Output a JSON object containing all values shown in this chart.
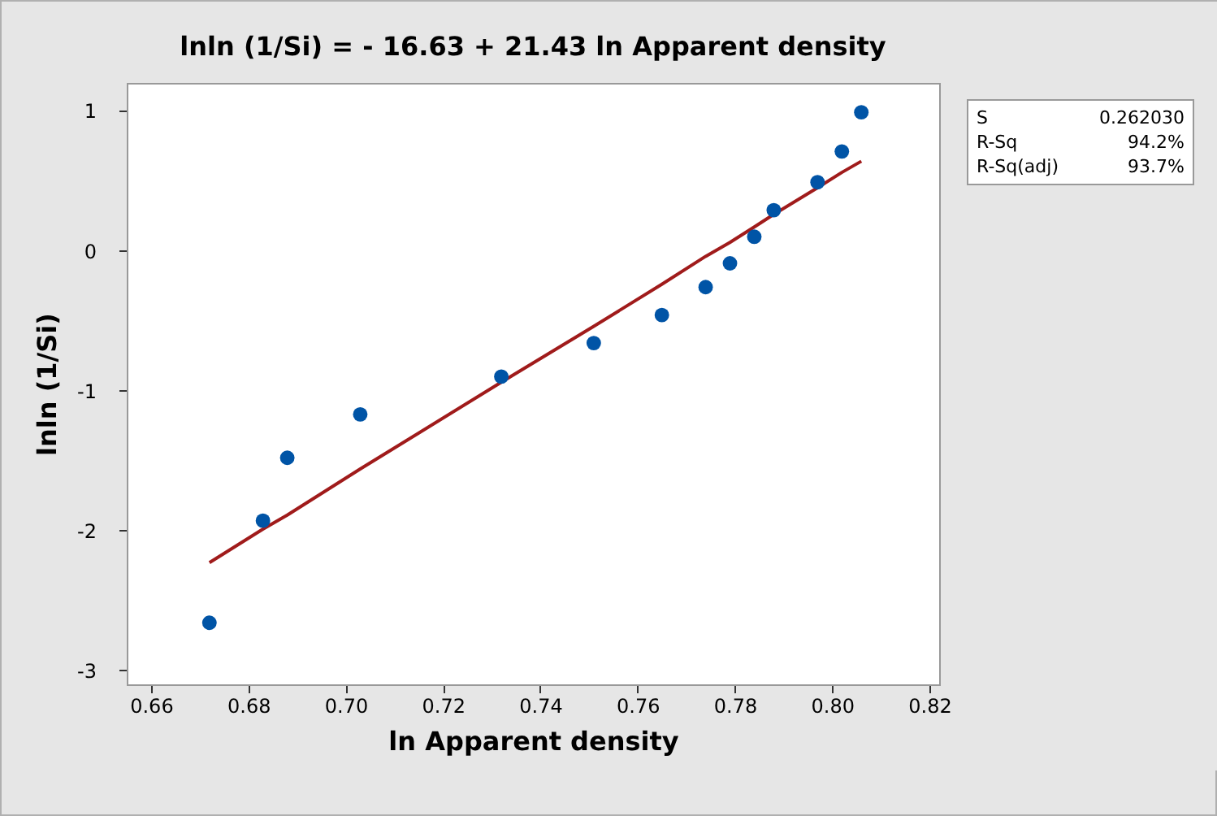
{
  "chart_data": {
    "type": "scatter",
    "title": "lnln (1/Si) = - 16.63 + 21.43 ln Apparent density",
    "xlabel": "ln Apparent density",
    "ylabel": "lnln (1/Si)",
    "xlim": [
      0.655,
      0.822
    ],
    "ylim": [
      -3.1,
      1.2
    ],
    "xticks": [
      0.66,
      0.68,
      {
        "value": 0.7,
        "label": "0.70"
      },
      0.72,
      0.74,
      0.76,
      0.78,
      {
        "value": 0.8,
        "label": "0.80"
      },
      0.82
    ],
    "yticks": [
      -3,
      -2,
      -1,
      0,
      1
    ],
    "grid": false,
    "annotations": [
      "S",
      "0.262030",
      "R-Sq",
      "94.2%",
      "R-Sq(adj)",
      "93.7%"
    ],
    "series": [
      {
        "marker": "circle",
        "color": "#0054a6",
        "x": [
          0.672,
          0.683,
          0.688,
          0.703,
          0.732,
          0.751,
          0.765,
          0.774,
          0.779,
          0.784,
          0.788,
          0.797,
          0.802,
          0.806
        ],
        "values": [
          -2.66,
          -1.93,
          -1.48,
          -1.17,
          -0.9,
          -0.66,
          -0.46,
          -0.26,
          -0.09,
          0.1,
          0.29,
          0.49,
          0.71,
          0.99
        ]
      },
      {
        "type": "line",
        "marker": "none",
        "color": "#a01b1b",
        "x": [
          0.672,
          0.683,
          0.688,
          0.703,
          0.732,
          0.751,
          0.765,
          0.774,
          0.779,
          0.784,
          0.788,
          0.797,
          0.802,
          0.806
        ],
        "values": [
          -2.23,
          -1.99,
          -1.89,
          -1.56,
          -0.94,
          -0.54,
          -0.24,
          -0.04,
          0.06,
          0.17,
          0.26,
          0.45,
          0.56,
          0.64
        ]
      }
    ]
  }
}
